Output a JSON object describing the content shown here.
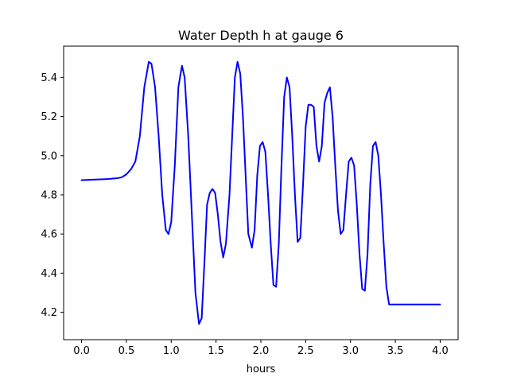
{
  "chart_data": {
    "type": "line",
    "title": "Water Depth h at gauge 6",
    "xlabel": "hours",
    "ylabel": "",
    "xlim": [
      -0.2,
      4.2
    ],
    "ylim": [
      4.06,
      5.56
    ],
    "xticks": [
      0.0,
      0.5,
      1.0,
      1.5,
      2.0,
      2.5,
      3.0,
      3.5,
      4.0
    ],
    "yticks": [
      4.2,
      4.4,
      4.6,
      4.8,
      5.0,
      5.2,
      5.4
    ],
    "xtick_labels": [
      "0.0",
      "0.5",
      "1.0",
      "1.5",
      "2.0",
      "2.5",
      "3.0",
      "3.5",
      "4.0"
    ],
    "ytick_labels": [
      "4.2",
      "4.4",
      "4.6",
      "4.8",
      "5.0",
      "5.2",
      "5.4"
    ],
    "grid": false,
    "series": [
      {
        "color": "#0000ff",
        "x": [
          0.0,
          0.1,
          0.2,
          0.3,
          0.4,
          0.45,
          0.5,
          0.55,
          0.6,
          0.65,
          0.7,
          0.75,
          0.78,
          0.82,
          0.86,
          0.9,
          0.94,
          0.97,
          1.0,
          1.04,
          1.08,
          1.12,
          1.15,
          1.19,
          1.23,
          1.27,
          1.31,
          1.34,
          1.37,
          1.4,
          1.43,
          1.46,
          1.49,
          1.52,
          1.55,
          1.58,
          1.61,
          1.65,
          1.68,
          1.71,
          1.74,
          1.77,
          1.8,
          1.83,
          1.86,
          1.9,
          1.93,
          1.96,
          1.99,
          2.02,
          2.05,
          2.08,
          2.11,
          2.14,
          2.17,
          2.2,
          2.23,
          2.26,
          2.29,
          2.32,
          2.35,
          2.38,
          2.41,
          2.44,
          2.47,
          2.5,
          2.53,
          2.56,
          2.59,
          2.62,
          2.65,
          2.68,
          2.71,
          2.74,
          2.77,
          2.8,
          2.83,
          2.86,
          2.89,
          2.92,
          2.95,
          2.98,
          3.01,
          3.04,
          3.07,
          3.1,
          3.13,
          3.16,
          3.19,
          3.22,
          3.25,
          3.28,
          3.31,
          3.34,
          3.37,
          3.4,
          3.43,
          3.46,
          3.49,
          3.52,
          3.55,
          3.58,
          3.61,
          3.64,
          3.67,
          3.7,
          3.73,
          3.76,
          3.79,
          3.82,
          3.85,
          3.88,
          3.91,
          3.94,
          3.97,
          4.0
        ],
        "values": [
          4.875,
          4.877,
          4.879,
          4.881,
          4.885,
          4.89,
          4.905,
          4.93,
          4.97,
          5.1,
          5.35,
          5.48,
          5.47,
          5.35,
          5.1,
          4.8,
          4.62,
          4.6,
          4.66,
          4.95,
          5.35,
          5.46,
          5.4,
          5.1,
          4.7,
          4.3,
          4.14,
          4.17,
          4.45,
          4.75,
          4.81,
          4.83,
          4.81,
          4.7,
          4.56,
          4.48,
          4.55,
          4.8,
          5.1,
          5.4,
          5.48,
          5.42,
          5.2,
          4.9,
          4.6,
          4.53,
          4.62,
          4.9,
          5.05,
          5.07,
          5.02,
          4.8,
          4.55,
          4.34,
          4.33,
          4.55,
          4.95,
          5.3,
          5.4,
          5.35,
          5.1,
          4.8,
          4.56,
          4.58,
          4.85,
          5.15,
          5.26,
          5.26,
          5.25,
          5.05,
          4.97,
          5.05,
          5.27,
          5.32,
          5.35,
          5.2,
          4.95,
          4.72,
          4.6,
          4.62,
          4.8,
          4.97,
          4.99,
          4.95,
          4.75,
          4.5,
          4.32,
          4.31,
          4.5,
          4.85,
          5.05,
          5.07,
          5.0,
          4.8,
          4.55,
          4.33,
          4.24,
          4.24,
          4.24,
          4.24,
          4.24,
          4.24,
          4.24,
          4.24,
          4.24,
          4.24,
          4.24,
          4.24,
          4.24,
          4.24,
          4.24,
          4.24,
          4.24,
          4.24,
          4.24,
          4.24
        ]
      }
    ]
  }
}
